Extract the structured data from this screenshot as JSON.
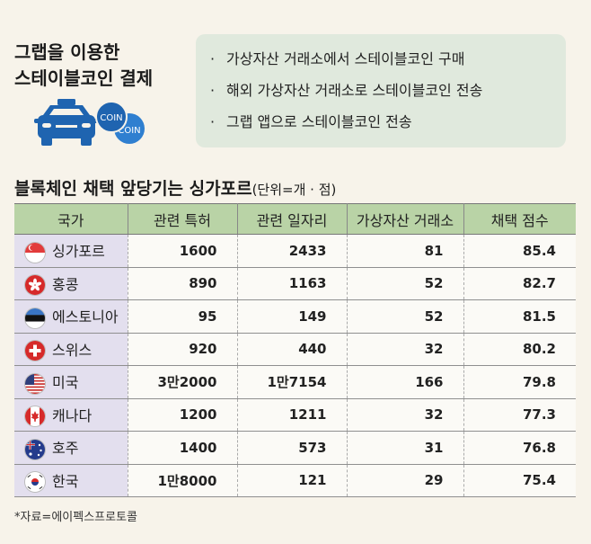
{
  "header": {
    "title_line1": "그랩을 이용한",
    "title_line2": "스테이블코인 결제",
    "coin_label": "COIN"
  },
  "info_items": [
    "가상자산 거래소에서 스테이블코인 구매",
    "해외 가상자산 거래소로 스테이블코인 전송",
    "그랩 앱으로 스테이블코인 전송"
  ],
  "bullet": "·",
  "chart_data": {
    "type": "table",
    "title": "블록체인 채택 앞당기는 싱가포르",
    "unit": "(단위=개 · 점)",
    "columns": [
      "국가",
      "관련 특허",
      "관련 일자리",
      "가상자산 거래소",
      "채택 점수"
    ],
    "rows": [
      {
        "country": "싱가포르",
        "flag": "singapore-flag",
        "values": [
          "1600",
          "2433",
          "81",
          "85.4"
        ]
      },
      {
        "country": "홍콩",
        "flag": "hong-kong-flag",
        "values": [
          "890",
          "1163",
          "52",
          "82.7"
        ]
      },
      {
        "country": "에스토니아",
        "flag": "estonia-flag",
        "values": [
          "95",
          "149",
          "52",
          "81.5"
        ]
      },
      {
        "country": "스위스",
        "flag": "switzerland-flag",
        "values": [
          "920",
          "440",
          "32",
          "80.2"
        ]
      },
      {
        "country": "미국",
        "flag": "usa-flag",
        "values": [
          "3만2000",
          "1만7154",
          "166",
          "79.8"
        ]
      },
      {
        "country": "캐나다",
        "flag": "canada-flag",
        "values": [
          "1200",
          "1211",
          "32",
          "77.3"
        ]
      },
      {
        "country": "호주",
        "flag": "australia-flag",
        "values": [
          "1400",
          "573",
          "31",
          "76.8"
        ]
      },
      {
        "country": "한국",
        "flag": "south-korea-flag",
        "values": [
          "1만8000",
          "121",
          "29",
          "75.4"
        ]
      }
    ]
  },
  "footnote": "*자료=에이펙스프로토콜",
  "colors": {
    "background": "#f7f3ea",
    "info_box": "#e0e9dd",
    "table_header": "#b9d3a6",
    "country_column": "#e3dfee",
    "taxi": "#1f64b0",
    "coin": "#2f7fd0"
  }
}
